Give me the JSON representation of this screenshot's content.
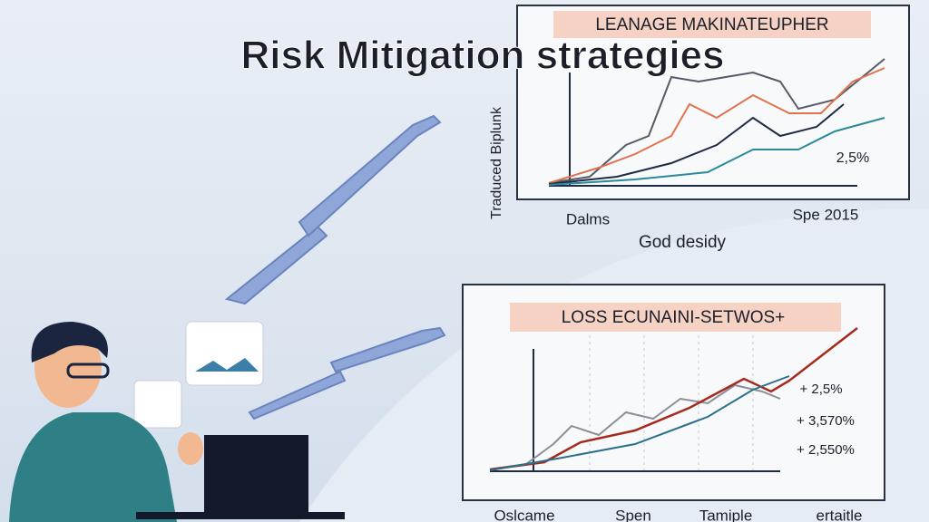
{
  "title": "Risk Mitigation strategies",
  "top_chart": {
    "header": "LEANAGE MAKINATEUPHER",
    "y_label": "Traduced Biplunk",
    "annotation": "2,5%",
    "x_labels": [
      "Dalms",
      "Spe 2015"
    ],
    "x_title": "God desidy"
  },
  "bottom_chart": {
    "header": "LOSS ECUNAINI-SETWOS+",
    "annotations": [
      "+ 2,5%",
      "+ 3,570%",
      "+ 2,550%"
    ],
    "x_labels": [
      "Oslcame",
      "Spen",
      "Tamiple",
      "ertaitle"
    ]
  }
}
